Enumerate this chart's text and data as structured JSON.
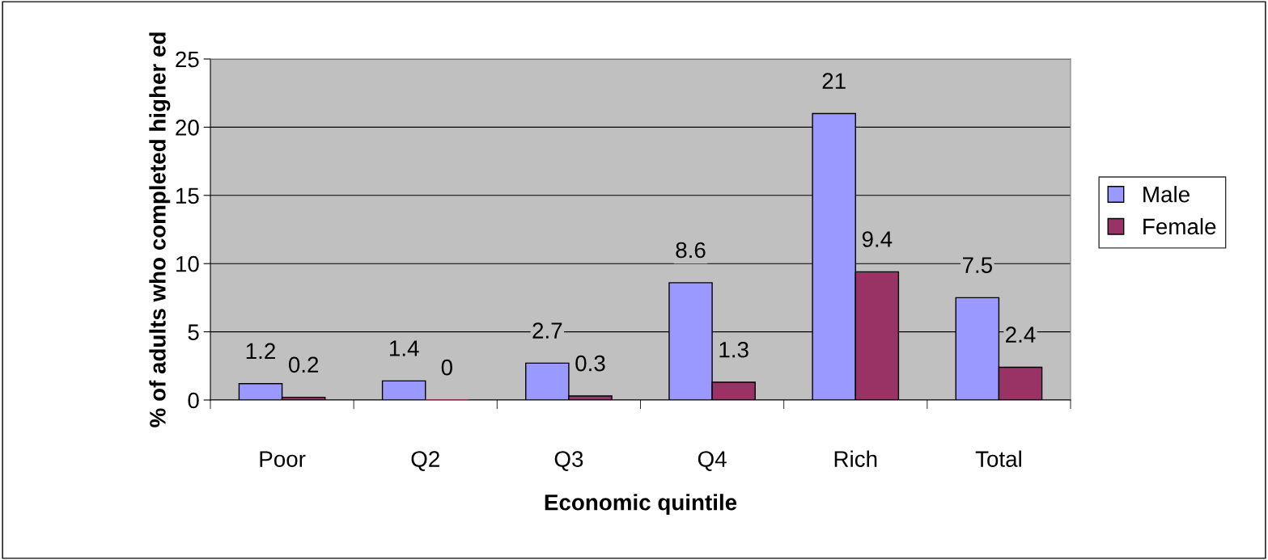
{
  "chart_data": {
    "type": "bar",
    "xlabel": "Economic quintile",
    "ylabel": "% of adults who completed higher ed",
    "categories": [
      "Poor",
      "Q2",
      "Q3",
      "Q4",
      "Rich",
      "Total"
    ],
    "series": [
      {
        "name": "Male",
        "color": "#9999ff",
        "values": [
          1.2,
          1.4,
          2.7,
          8.6,
          21,
          7.5
        ]
      },
      {
        "name": "Female",
        "color": "#993366",
        "values": [
          0.2,
          0,
          0.3,
          1.3,
          9.4,
          2.4
        ]
      }
    ],
    "ylim": [
      0,
      25
    ],
    "yticks": [
      0,
      5,
      10,
      15,
      20,
      25
    ],
    "grid": "y",
    "legend": "right",
    "data_labels": true
  }
}
